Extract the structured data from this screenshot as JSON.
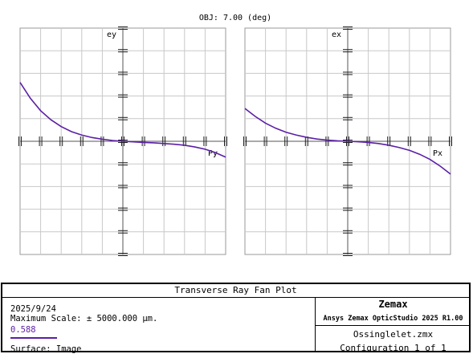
{
  "header": {
    "obj_label": "OBJ: 7.00 (deg)"
  },
  "chart_data": [
    {
      "type": "line",
      "ylabel": "ey",
      "xlabel": "Py",
      "xlim": [
        -1,
        1
      ],
      "ylim": [
        -1,
        1
      ],
      "grid": true,
      "series": [
        {
          "color": "#5b1fa6",
          "x": [
            -1.0,
            -0.9,
            -0.8,
            -0.7,
            -0.6,
            -0.5,
            -0.4,
            -0.3,
            -0.2,
            -0.1,
            0.0,
            0.1,
            0.2,
            0.3,
            0.4,
            0.5,
            0.6,
            0.7,
            0.8,
            0.9,
            1.0
          ],
          "y": [
            0.52,
            0.38,
            0.27,
            0.19,
            0.13,
            0.085,
            0.055,
            0.033,
            0.018,
            0.007,
            0.0,
            -0.005,
            -0.01,
            -0.014,
            -0.02,
            -0.026,
            -0.035,
            -0.05,
            -0.07,
            -0.1,
            -0.14
          ]
        }
      ]
    },
    {
      "type": "line",
      "ylabel": "ex",
      "xlabel": "Px",
      "xlim": [
        -1,
        1
      ],
      "ylim": [
        -1,
        1
      ],
      "grid": true,
      "series": [
        {
          "color": "#5b1fa6",
          "x": [
            -1.0,
            -0.9,
            -0.8,
            -0.7,
            -0.6,
            -0.5,
            -0.4,
            -0.3,
            -0.2,
            -0.1,
            0.0,
            0.1,
            0.2,
            0.3,
            0.4,
            0.5,
            0.6,
            0.7,
            0.8,
            0.9,
            1.0
          ],
          "y": [
            0.29,
            0.22,
            0.16,
            0.115,
            0.08,
            0.055,
            0.035,
            0.02,
            0.01,
            0.004,
            0.0,
            -0.004,
            -0.01,
            -0.02,
            -0.035,
            -0.055,
            -0.08,
            -0.115,
            -0.16,
            -0.22,
            -0.29
          ]
        }
      ]
    }
  ],
  "footer": {
    "plot_title": "Transverse Ray Fan Plot",
    "date": "2025/9/24",
    "max_scale": "Maximum Scale: ± 5000.000 µm.",
    "wavelength": "0.588",
    "surface": "Surface: Image",
    "brand": "Zemax",
    "product": "Ansys Zemax OpticStudio 2025 R1.00",
    "file": "Ossinglelet.zmx",
    "config": "Configuration 1 of 1"
  }
}
